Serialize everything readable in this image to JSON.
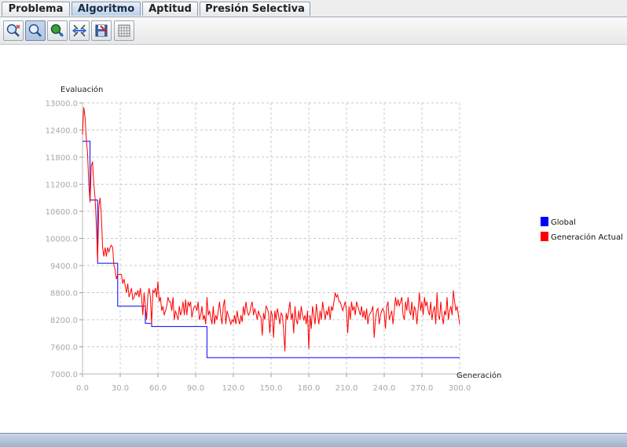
{
  "tabs": [
    {
      "label": "Problema"
    },
    {
      "label": "Algoritmo"
    },
    {
      "label": "Aptitud"
    },
    {
      "label": "Presión Selectiva"
    }
  ],
  "active_tab": "Algoritmo",
  "toolbar": {
    "buttons": [
      {
        "icon": "zoom-in-icon"
      },
      {
        "icon": "zoom-icon"
      },
      {
        "icon": "zoom-out-icon"
      },
      {
        "icon": "fit-icon"
      },
      {
        "icon": "save-icon"
      },
      {
        "icon": "grid-icon"
      }
    ]
  },
  "chart_data": {
    "type": "line",
    "ylabel": "Evaluación",
    "xlabel": "Generación",
    "xlim": [
      0,
      300
    ],
    "ylim": [
      7000,
      13000
    ],
    "x_ticks": [
      "0.0",
      "30.0",
      "60.0",
      "90.0",
      "120.0",
      "150.0",
      "180.0",
      "210.0",
      "240.0",
      "270.0",
      "300.0"
    ],
    "y_ticks": [
      "13000.0",
      "12400.0",
      "11800.0",
      "11200.0",
      "10600.0",
      "10000.0",
      "9400.0",
      "8800.0",
      "8200.0",
      "7600.0",
      "7000.0"
    ],
    "grid": true,
    "legend_position": "right",
    "series": [
      {
        "name": "Global",
        "color": "#0000ff",
        "points": [
          [
            0,
            12150
          ],
          [
            4,
            12150
          ],
          [
            6,
            10850
          ],
          [
            10,
            10850
          ],
          [
            12,
            9450
          ],
          [
            26,
            9450
          ],
          [
            28,
            8500
          ],
          [
            48,
            8500
          ],
          [
            50,
            8120
          ],
          [
            54,
            8120
          ],
          [
            55,
            8050
          ],
          [
            98,
            8050
          ],
          [
            99,
            7360
          ],
          [
            300,
            7360
          ]
        ]
      },
      {
        "name": "Generación Actual",
        "color": "#ff0000",
        "points": [
          [
            0,
            12300
          ],
          [
            1,
            12900
          ],
          [
            2,
            12700
          ],
          [
            3,
            12200
          ],
          [
            4,
            11900
          ],
          [
            5,
            11200
          ],
          [
            6,
            10800
          ],
          [
            7,
            11600
          ],
          [
            8,
            11700
          ],
          [
            9,
            11200
          ],
          [
            10,
            10900
          ],
          [
            11,
            10300
          ],
          [
            12,
            9500
          ],
          [
            13,
            10700
          ],
          [
            14,
            10900
          ],
          [
            15,
            10500
          ],
          [
            16,
            9800
          ],
          [
            17,
            9600
          ],
          [
            18,
            9800
          ],
          [
            19,
            9600
          ],
          [
            20,
            9800
          ],
          [
            21,
            9700
          ],
          [
            22,
            9800
          ],
          [
            23,
            9850
          ],
          [
            24,
            9800
          ],
          [
            25,
            9400
          ],
          [
            26,
            9300
          ],
          [
            27,
            9100
          ],
          [
            28,
            9200
          ],
          [
            29,
            9200
          ],
          [
            30,
            9200
          ],
          [
            31,
            9200
          ],
          [
            32,
            9000
          ],
          [
            33,
            9100
          ],
          [
            34,
            8950
          ],
          [
            35,
            8800
          ],
          [
            36,
            9000
          ],
          [
            37,
            8700
          ],
          [
            38,
            8800
          ],
          [
            39,
            8900
          ],
          [
            40,
            8650
          ],
          [
            41,
            8700
          ],
          [
            42,
            8800
          ],
          [
            43,
            8750
          ],
          [
            44,
            8850
          ],
          [
            45,
            8700
          ],
          [
            46,
            8900
          ],
          [
            47,
            8700
          ],
          [
            48,
            8300
          ],
          [
            49,
            8800
          ],
          [
            50,
            8500
          ],
          [
            51,
            8200
          ],
          [
            52,
            8750
          ],
          [
            53,
            8900
          ],
          [
            54,
            8700
          ],
          [
            55,
            8100
          ],
          [
            56,
            8850
          ],
          [
            57,
            8800
          ],
          [
            58,
            8900
          ],
          [
            59,
            8700
          ],
          [
            60,
            9050
          ],
          [
            61,
            8600
          ],
          [
            62,
            8700
          ],
          [
            63,
            8400
          ],
          [
            64,
            8500
          ],
          [
            65,
            8300
          ],
          [
            66,
            8400
          ],
          [
            67,
            8500
          ],
          [
            68,
            8700
          ],
          [
            69,
            8600
          ],
          [
            70,
            8600
          ],
          [
            71,
            8400
          ],
          [
            72,
            8700
          ],
          [
            73,
            8200
          ],
          [
            74,
            8400
          ],
          [
            75,
            8300
          ],
          [
            76,
            8200
          ],
          [
            77,
            8500
          ],
          [
            78,
            8300
          ],
          [
            79,
            8400
          ],
          [
            80,
            8600
          ],
          [
            81,
            8300
          ],
          [
            82,
            8650
          ],
          [
            83,
            8300
          ],
          [
            84,
            8600
          ],
          [
            85,
            8500
          ],
          [
            86,
            8600
          ],
          [
            87,
            8250
          ],
          [
            88,
            8400
          ],
          [
            89,
            8500
          ],
          [
            90,
            8500
          ],
          [
            91,
            8400
          ],
          [
            92,
            8600
          ],
          [
            93,
            8200
          ],
          [
            94,
            8300
          ],
          [
            95,
            8500
          ],
          [
            96,
            8200
          ],
          [
            97,
            8300
          ],
          [
            98,
            8100
          ],
          [
            99,
            8700
          ],
          [
            100,
            8300
          ],
          [
            101,
            8400
          ],
          [
            102,
            8250
          ],
          [
            103,
            8100
          ],
          [
            104,
            8500
          ],
          [
            105,
            8100
          ],
          [
            106,
            8300
          ],
          [
            107,
            8200
          ],
          [
            108,
            8400
          ],
          [
            109,
            8600
          ],
          [
            110,
            8300
          ],
          [
            111,
            8100
          ],
          [
            112,
            8500
          ],
          [
            113,
            8650
          ],
          [
            114,
            8100
          ],
          [
            115,
            8400
          ],
          [
            116,
            8300
          ],
          [
            117,
            8200
          ],
          [
            118,
            8100
          ],
          [
            119,
            8200
          ],
          [
            120,
            8150
          ],
          [
            121,
            8300
          ],
          [
            122,
            8100
          ],
          [
            123,
            8400
          ],
          [
            124,
            8200
          ],
          [
            125,
            8100
          ],
          [
            126,
            8300
          ],
          [
            127,
            8150
          ],
          [
            128,
            8500
          ],
          [
            129,
            8300
          ],
          [
            130,
            8600
          ],
          [
            131,
            8400
          ],
          [
            132,
            8300
          ],
          [
            133,
            8350
          ],
          [
            134,
            8500
          ],
          [
            135,
            8600
          ],
          [
            136,
            8300
          ],
          [
            137,
            8450
          ],
          [
            138,
            8350
          ],
          [
            139,
            8200
          ],
          [
            140,
            8400
          ],
          [
            141,
            8300
          ],
          [
            142,
            8250
          ],
          [
            143,
            7850
          ],
          [
            144,
            8350
          ],
          [
            145,
            8200
          ],
          [
            146,
            8500
          ],
          [
            147,
            8450
          ],
          [
            148,
            8350
          ],
          [
            149,
            7900
          ],
          [
            150,
            8400
          ],
          [
            151,
            8300
          ],
          [
            152,
            7800
          ],
          [
            153,
            8400
          ],
          [
            154,
            8200
          ],
          [
            155,
            8450
          ],
          [
            156,
            8300
          ],
          [
            157,
            8100
          ],
          [
            158,
            8350
          ],
          [
            159,
            8300
          ],
          [
            160,
            7950
          ],
          [
            161,
            7500
          ],
          [
            162,
            8350
          ],
          [
            163,
            8200
          ],
          [
            164,
            8400
          ],
          [
            165,
            8600
          ],
          [
            166,
            8200
          ],
          [
            167,
            8350
          ],
          [
            168,
            7900
          ],
          [
            169,
            8500
          ],
          [
            170,
            8200
          ],
          [
            171,
            8100
          ],
          [
            172,
            8400
          ],
          [
            173,
            8200
          ],
          [
            174,
            8500
          ],
          [
            175,
            8300
          ],
          [
            176,
            8200
          ],
          [
            177,
            8300
          ],
          [
            178,
            8100
          ],
          [
            179,
            8400
          ],
          [
            180,
            7550
          ],
          [
            181,
            8300
          ],
          [
            182,
            8000
          ],
          [
            183,
            8500
          ],
          [
            184,
            8300
          ],
          [
            185,
            8100
          ],
          [
            186,
            8550
          ],
          [
            187,
            8300
          ],
          [
            188,
            8100
          ],
          [
            189,
            8400
          ],
          [
            190,
            8200
          ],
          [
            191,
            8600
          ],
          [
            192,
            8400
          ],
          [
            193,
            8200
          ],
          [
            194,
            8400
          ],
          [
            195,
            8300
          ],
          [
            196,
            8500
          ],
          [
            197,
            8200
          ],
          [
            198,
            8500
          ],
          [
            199,
            8400
          ],
          [
            200,
            8600
          ],
          [
            201,
            8800
          ],
          [
            202,
            8700
          ],
          [
            203,
            8750
          ],
          [
            204,
            8600
          ],
          [
            205,
            8600
          ],
          [
            206,
            8500
          ],
          [
            207,
            8400
          ],
          [
            208,
            8500
          ],
          [
            209,
            8600
          ],
          [
            210,
            8400
          ],
          [
            211,
            7900
          ],
          [
            212,
            8500
          ],
          [
            213,
            8200
          ],
          [
            214,
            8600
          ],
          [
            215,
            8400
          ],
          [
            216,
            8500
          ],
          [
            217,
            8300
          ],
          [
            218,
            8600
          ],
          [
            219,
            8500
          ],
          [
            220,
            8400
          ],
          [
            221,
            8300
          ],
          [
            222,
            8500
          ],
          [
            223,
            8250
          ],
          [
            224,
            8400
          ],
          [
            225,
            8200
          ],
          [
            226,
            8450
          ],
          [
            227,
            8100
          ],
          [
            228,
            8300
          ],
          [
            229,
            8350
          ],
          [
            230,
            8400
          ],
          [
            231,
            8500
          ],
          [
            232,
            7800
          ],
          [
            233,
            8200
          ],
          [
            234,
            8400
          ],
          [
            235,
            8450
          ],
          [
            236,
            8100
          ],
          [
            237,
            8300
          ],
          [
            238,
            8400
          ],
          [
            239,
            8450
          ],
          [
            240,
            8350
          ],
          [
            241,
            8000
          ],
          [
            242,
            8500
          ],
          [
            243,
            8600
          ],
          [
            244,
            8200
          ],
          [
            245,
            8300
          ],
          [
            246,
            8400
          ],
          [
            247,
            8100
          ],
          [
            248,
            8400
          ],
          [
            249,
            8700
          ],
          [
            250,
            8500
          ],
          [
            251,
            8650
          ],
          [
            252,
            8500
          ],
          [
            253,
            8600
          ],
          [
            254,
            8700
          ],
          [
            255,
            8300
          ],
          [
            256,
            8200
          ],
          [
            257,
            8600
          ],
          [
            258,
            8400
          ],
          [
            259,
            8700
          ],
          [
            260,
            8400
          ],
          [
            261,
            8300
          ],
          [
            262,
            8600
          ],
          [
            263,
            8200
          ],
          [
            264,
            8500
          ],
          [
            265,
            8400
          ],
          [
            266,
            8100
          ],
          [
            267,
            8450
          ],
          [
            268,
            8800
          ],
          [
            269,
            8400
          ],
          [
            270,
            8600
          ],
          [
            271,
            8300
          ],
          [
            272,
            8700
          ],
          [
            273,
            8500
          ],
          [
            274,
            8600
          ],
          [
            275,
            8400
          ],
          [
            276,
            8300
          ],
          [
            277,
            8600
          ],
          [
            278,
            8200
          ],
          [
            279,
            8400
          ],
          [
            280,
            8500
          ],
          [
            281,
            8100
          ],
          [
            282,
            8800
          ],
          [
            283,
            8300
          ],
          [
            284,
            8200
          ],
          [
            285,
            8600
          ],
          [
            286,
            8300
          ],
          [
            287,
            8100
          ],
          [
            288,
            8400
          ],
          [
            289,
            8300
          ],
          [
            290,
            8700
          ],
          [
            291,
            8200
          ],
          [
            292,
            8400
          ],
          [
            293,
            8500
          ],
          [
            294,
            8300
          ],
          [
            295,
            8850
          ],
          [
            296,
            8600
          ],
          [
            297,
            8400
          ],
          [
            298,
            8500
          ],
          [
            299,
            8300
          ],
          [
            300,
            8100
          ]
        ]
      }
    ]
  }
}
